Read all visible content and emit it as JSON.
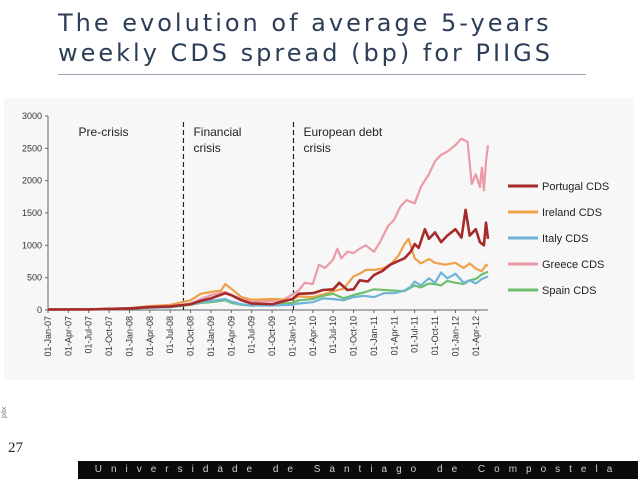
{
  "slide": {
    "title": "The evolution of average 5-years weekly CDS spread (bp) for PIIGS",
    "page_number": "27",
    "page_label_rotated": "páx",
    "footer": "Universidade de Santiago de Compostela"
  },
  "chart_data": {
    "type": "line",
    "title": "",
    "xlabel": "",
    "ylabel": "",
    "ylim": [
      0,
      3000
    ],
    "yticks": [
      0,
      500,
      1000,
      1500,
      2000,
      2500,
      3000
    ],
    "categories": [
      "01-Jan-07",
      "01-Apr-07",
      "01-Jul-07",
      "01-Oct-07",
      "01-Jan-08",
      "01-Apr-08",
      "01-Jul-08",
      "01-Oct-08",
      "01-Jan-09",
      "01-Apr-09",
      "01-Jul-09",
      "01-Oct-09",
      "01-Jan-10",
      "01-Apr-10",
      "01-Jul-10",
      "01-Oct-10",
      "01-Jan-11",
      "01-Apr-11",
      "01-Jul-11",
      "01-Oct-11",
      "01-Jan-12",
      "01-Apr-12"
    ],
    "x_end": 21.6,
    "phases": [
      {
        "label1": "Pre-crisis",
        "label2": "",
        "start": 0
      },
      {
        "label1": "Financial",
        "label2": "crisis",
        "start": 6.65
      },
      {
        "label1": "European debt",
        "label2": "crisis",
        "start": 12.05
      }
    ],
    "series": [
      {
        "name": "Portugal CDS",
        "color": "#a52a2a",
        "points": [
          [
            0,
            8
          ],
          [
            2,
            10
          ],
          [
            4,
            25
          ],
          [
            5,
            45
          ],
          [
            6,
            55
          ],
          [
            7,
            90
          ],
          [
            7.5,
            140
          ],
          [
            8,
            180
          ],
          [
            8.7,
            260
          ],
          [
            9,
            230
          ],
          [
            9.5,
            150
          ],
          [
            10,
            100
          ],
          [
            11,
            90
          ],
          [
            12,
            170
          ],
          [
            12.3,
            250
          ],
          [
            13,
            260
          ],
          [
            13.5,
            310
          ],
          [
            14,
            320
          ],
          [
            14.3,
            420
          ],
          [
            14.7,
            310
          ],
          [
            15,
            320
          ],
          [
            15.3,
            460
          ],
          [
            15.7,
            440
          ],
          [
            16,
            540
          ],
          [
            16.4,
            600
          ],
          [
            16.8,
            700
          ],
          [
            17.2,
            760
          ],
          [
            17.5,
            800
          ],
          [
            17.8,
            900
          ],
          [
            18,
            1020
          ],
          [
            18.2,
            960
          ],
          [
            18.5,
            1250
          ],
          [
            18.7,
            1100
          ],
          [
            19,
            1200
          ],
          [
            19.3,
            1050
          ],
          [
            19.6,
            1150
          ],
          [
            20,
            1250
          ],
          [
            20.3,
            1120
          ],
          [
            20.5,
            1550
          ],
          [
            20.7,
            1150
          ],
          [
            21,
            1250
          ],
          [
            21.2,
            1050
          ],
          [
            21.4,
            1000
          ],
          [
            21.5,
            1350
          ],
          [
            21.6,
            1100
          ]
        ]
      },
      {
        "name": "Ireland CDS",
        "color": "#f0a04b",
        "points": [
          [
            0,
            8
          ],
          [
            2,
            10
          ],
          [
            4,
            30
          ],
          [
            5,
            60
          ],
          [
            6,
            80
          ],
          [
            7,
            150
          ],
          [
            7.5,
            250
          ],
          [
            8,
            280
          ],
          [
            8.5,
            300
          ],
          [
            8.7,
            400
          ],
          [
            9,
            330
          ],
          [
            9.5,
            200
          ],
          [
            10,
            160
          ],
          [
            11,
            170
          ],
          [
            12,
            160
          ],
          [
            12.3,
            210
          ],
          [
            13,
            200
          ],
          [
            13.5,
            240
          ],
          [
            14,
            290
          ],
          [
            14.5,
            330
          ],
          [
            15,
            520
          ],
          [
            15.3,
            560
          ],
          [
            15.6,
            620
          ],
          [
            16,
            620
          ],
          [
            16.4,
            640
          ],
          [
            16.8,
            700
          ],
          [
            17.2,
            840
          ],
          [
            17.5,
            1020
          ],
          [
            17.7,
            1100
          ],
          [
            18,
            800
          ],
          [
            18.3,
            720
          ],
          [
            18.7,
            790
          ],
          [
            19,
            730
          ],
          [
            19.5,
            700
          ],
          [
            20,
            730
          ],
          [
            20.4,
            650
          ],
          [
            20.7,
            720
          ],
          [
            21,
            640
          ],
          [
            21.3,
            600
          ],
          [
            21.5,
            700
          ],
          [
            21.6,
            680
          ]
        ]
      },
      {
        "name": "Italy CDS",
        "color": "#6fb4d6",
        "points": [
          [
            0,
            8
          ],
          [
            2,
            10
          ],
          [
            4,
            25
          ],
          [
            5,
            35
          ],
          [
            6,
            45
          ],
          [
            7,
            90
          ],
          [
            7.5,
            120
          ],
          [
            8,
            140
          ],
          [
            8.7,
            170
          ],
          [
            9,
            130
          ],
          [
            9.5,
            90
          ],
          [
            10,
            70
          ],
          [
            11,
            70
          ],
          [
            12,
            80
          ],
          [
            12.3,
            100
          ],
          [
            13,
            120
          ],
          [
            13.5,
            180
          ],
          [
            14,
            170
          ],
          [
            14.5,
            150
          ],
          [
            15,
            200
          ],
          [
            15.5,
            220
          ],
          [
            16,
            200
          ],
          [
            16.5,
            260
          ],
          [
            17,
            260
          ],
          [
            17.5,
            300
          ],
          [
            17.8,
            360
          ],
          [
            18,
            440
          ],
          [
            18.3,
            380
          ],
          [
            18.7,
            490
          ],
          [
            19,
            420
          ],
          [
            19.3,
            580
          ],
          [
            19.6,
            490
          ],
          [
            20,
            560
          ],
          [
            20.4,
            420
          ],
          [
            20.7,
            460
          ],
          [
            21,
            410
          ],
          [
            21.3,
            480
          ],
          [
            21.6,
            520
          ]
        ]
      },
      {
        "name": "Greece CDS",
        "color": "#ec9aa6",
        "points": [
          [
            0,
            8
          ],
          [
            2,
            10
          ],
          [
            4,
            25
          ],
          [
            5,
            35
          ],
          [
            6,
            45
          ],
          [
            7,
            100
          ],
          [
            7.5,
            170
          ],
          [
            8,
            230
          ],
          [
            8.7,
            280
          ],
          [
            9,
            230
          ],
          [
            9.5,
            170
          ],
          [
            10,
            130
          ],
          [
            11,
            140
          ],
          [
            11.5,
            150
          ],
          [
            12,
            240
          ],
          [
            12.3,
            300
          ],
          [
            12.6,
            420
          ],
          [
            13,
            400
          ],
          [
            13.3,
            700
          ],
          [
            13.6,
            650
          ],
          [
            14,
            780
          ],
          [
            14.2,
            950
          ],
          [
            14.4,
            800
          ],
          [
            14.7,
            900
          ],
          [
            15,
            880
          ],
          [
            15.3,
            950
          ],
          [
            15.6,
            1000
          ],
          [
            16,
            900
          ],
          [
            16.3,
            1050
          ],
          [
            16.7,
            1300
          ],
          [
            17,
            1400
          ],
          [
            17.3,
            1600
          ],
          [
            17.6,
            1700
          ],
          [
            18,
            1650
          ],
          [
            18.3,
            1900
          ],
          [
            18.7,
            2100
          ],
          [
            19,
            2300
          ],
          [
            19.3,
            2400
          ],
          [
            19.6,
            2450
          ],
          [
            20,
            2550
          ],
          [
            20.3,
            2650
          ],
          [
            20.6,
            2600
          ],
          [
            20.8,
            1950
          ],
          [
            21,
            2100
          ],
          [
            21.2,
            1900
          ],
          [
            21.3,
            2200
          ],
          [
            21.4,
            1850
          ],
          [
            21.5,
            2300
          ],
          [
            21.6,
            2550
          ]
        ]
      },
      {
        "name": "Spain CDS",
        "color": "#6dbf6d",
        "points": [
          [
            0,
            8
          ],
          [
            2,
            10
          ],
          [
            4,
            25
          ],
          [
            5,
            35
          ],
          [
            6,
            45
          ],
          [
            7,
            80
          ],
          [
            7.5,
            110
          ],
          [
            8,
            120
          ],
          [
            8.7,
            150
          ],
          [
            9,
            110
          ],
          [
            9.5,
            80
          ],
          [
            10,
            70
          ],
          [
            11,
            80
          ],
          [
            12,
            110
          ],
          [
            12.3,
            150
          ],
          [
            13,
            170
          ],
          [
            13.5,
            220
          ],
          [
            14,
            250
          ],
          [
            14.5,
            180
          ],
          [
            15,
            230
          ],
          [
            15.5,
            270
          ],
          [
            16,
            320
          ],
          [
            16.5,
            310
          ],
          [
            17,
            300
          ],
          [
            17.5,
            290
          ],
          [
            18,
            380
          ],
          [
            18.3,
            350
          ],
          [
            18.7,
            410
          ],
          [
            19,
            400
          ],
          [
            19.3,
            380
          ],
          [
            19.6,
            450
          ],
          [
            20,
            420
          ],
          [
            20.4,
            400
          ],
          [
            20.7,
            460
          ],
          [
            21,
            480
          ],
          [
            21.3,
            550
          ],
          [
            21.6,
            590
          ]
        ]
      }
    ]
  }
}
